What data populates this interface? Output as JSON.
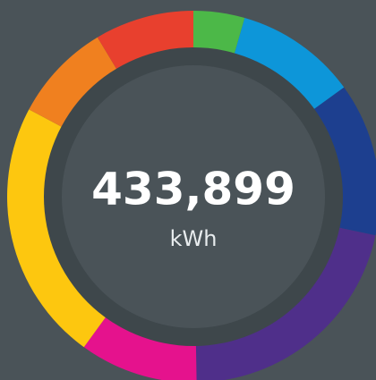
{
  "reading": {
    "value": "433,899",
    "unit": "kWh"
  }
}
